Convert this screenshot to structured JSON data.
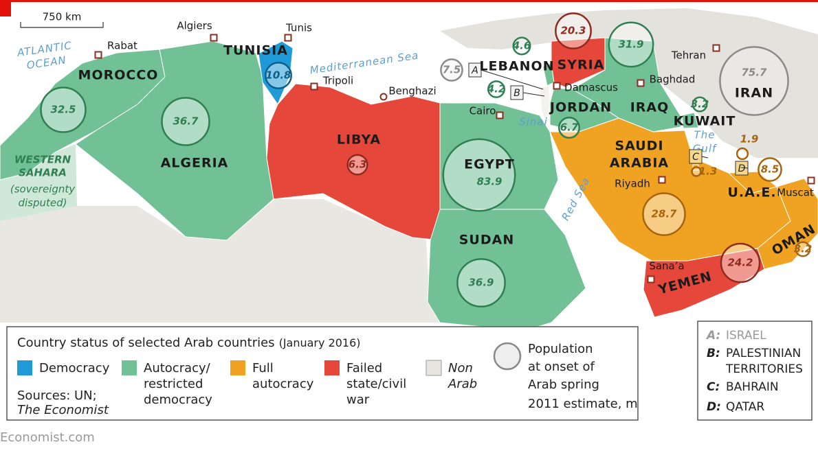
{
  "scale_bar": "750 km",
  "statuses": [
    {
      "label": [
        "Democracy"
      ],
      "color": "#1f9ad6",
      "dark": "#0c5f8a"
    },
    {
      "label": [
        "Autocracy/",
        "restricted",
        "democracy"
      ],
      "color": "#72c095",
      "dark": "#2f7f53"
    },
    {
      "label": [
        "Full",
        "autocracy"
      ],
      "color": "#f0a322",
      "dark": "#a8640a"
    },
    {
      "label": [
        "Failed",
        "state/civil",
        "war"
      ],
      "color": "#e5473a",
      "dark": "#8f2a1e"
    },
    {
      "label": [
        "Non",
        "Arab"
      ],
      "color": "#e7e5e0",
      "dark": "#8a8a8a"
    }
  ],
  "countries": [
    {
      "name": [
        "MOROCCO"
      ],
      "status": 1,
      "population": 32.5
    },
    {
      "name": [
        "ALGERIA"
      ],
      "status": 1,
      "population": 36.7
    },
    {
      "name": [
        "TUNISIA"
      ],
      "status": 0,
      "population": 10.8
    },
    {
      "name": [
        "LIBYA"
      ],
      "status": 3,
      "population": 6.3
    },
    {
      "name": [
        "EGYPT"
      ],
      "status": 1,
      "population": 83.9
    },
    {
      "name": [
        "SUDAN"
      ],
      "status": 1,
      "population": 36.9
    },
    {
      "name": [
        "A"
      ],
      "status": 4,
      "population": 7.5
    },
    {
      "name": [
        "LEBANON"
      ],
      "status": 1,
      "population": 4.6
    },
    {
      "name": [
        "B"
      ],
      "status": 1,
      "population": 4.2
    },
    {
      "name": [
        "SYRIA"
      ],
      "status": 3,
      "population": 20.3
    },
    {
      "name": [
        "IRAQ"
      ],
      "status": 1,
      "population": 31.9
    },
    {
      "name": [
        "IRAN"
      ],
      "status": 4,
      "population": 75.7
    },
    {
      "name": [
        "KUWAIT"
      ],
      "status": 1,
      "population": 3.2
    },
    {
      "name": [
        "JORDAN"
      ],
      "status": 1,
      "population": 6.7
    },
    {
      "name": [
        "SAUDI",
        "ARABIA"
      ],
      "status": 2,
      "population": 28.7
    },
    {
      "name": [
        "C"
      ],
      "status": 2,
      "population": 1.3
    },
    {
      "name": [
        "D"
      ],
      "status": 2,
      "population": 1.9
    },
    {
      "name": [
        "U.A.E."
      ],
      "status": 2,
      "population": 8.5
    },
    {
      "name": [
        "OMAN"
      ],
      "status": 2,
      "population": 3.2
    },
    {
      "name": [
        "YEMEN"
      ],
      "status": 3,
      "population": 24.2
    }
  ],
  "western_sahara": {
    "name": [
      "WESTERN",
      "SAHARA"
    ],
    "note": [
      "(sovereignty",
      "disputed)"
    ]
  },
  "cities": [
    "Rabat",
    "Algiers",
    "Tunis",
    "Tripoli",
    "Benghazi",
    "Cairo",
    "Damascus",
    "Baghdad",
    "Tehran",
    "Riyadh",
    "Sana’a",
    "Muscat"
  ],
  "waters": [
    [
      "ATLANTIC",
      "OCEAN"
    ],
    [
      "Mediterranean Sea"
    ],
    [
      "Red Sea"
    ],
    [
      "Sinai"
    ],
    [
      "The",
      "Gulf"
    ]
  ],
  "legend": {
    "title": "Country status of selected Arab countries",
    "date": "(January 2016)",
    "population_title": [
      "Population",
      "at onset of",
      "Arab spring"
    ],
    "population_note": "2011 estimate, m",
    "sources": "Sources: UN;",
    "sources_name": "The Economist"
  },
  "key": [
    {
      "letter": "A:",
      "name": [
        "ISRAEL"
      ]
    },
    {
      "letter": "B:",
      "name": [
        "PALESTINIAN",
        "TERRITORIES"
      ]
    },
    {
      "letter": "C:",
      "name": [
        "BAHRAIN"
      ]
    },
    {
      "letter": "D:",
      "name": [
        "QATAR"
      ]
    }
  ],
  "credit": "Economist.com"
}
